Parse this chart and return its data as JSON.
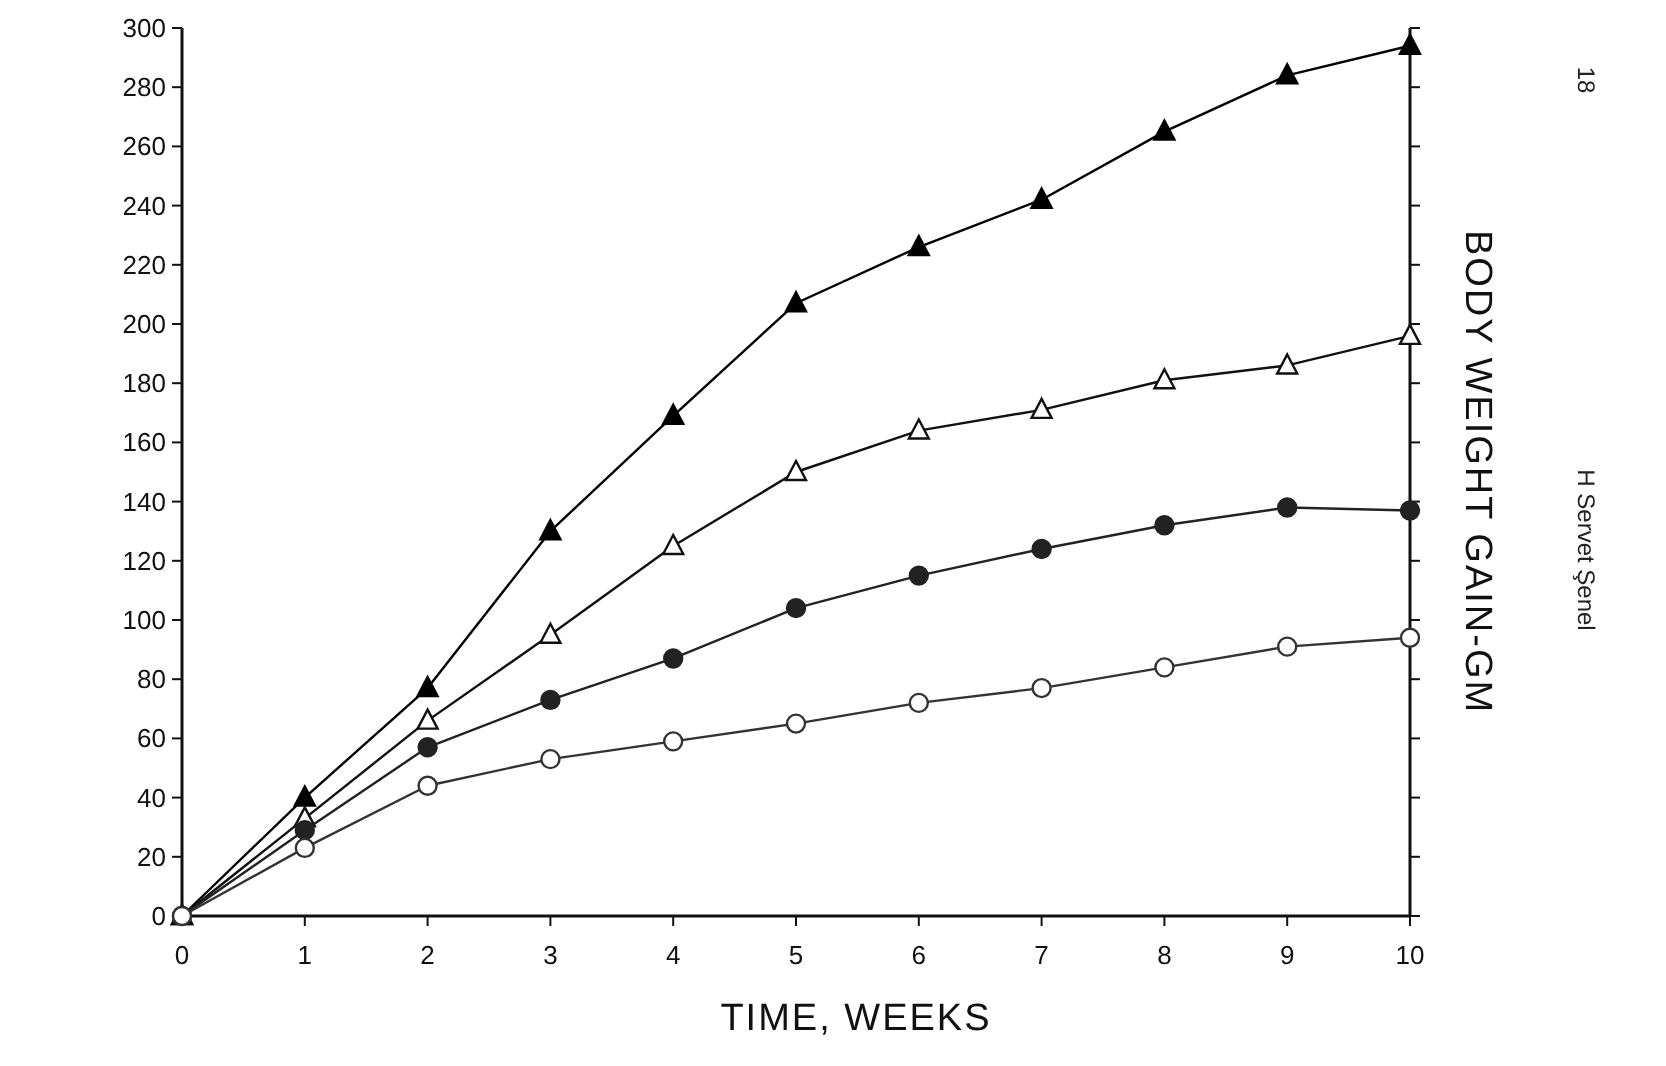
{
  "chart_data": {
    "type": "line",
    "xlabel": "TIME, WEEKS",
    "ylabel": "BODY WEIGHT GAIN-GM",
    "x": [
      0,
      1,
      2,
      3,
      4,
      5,
      6,
      7,
      8,
      9,
      10
    ],
    "series": [
      {
        "color": "#000000",
        "marker": "triangle",
        "values": [
          0,
          40,
          77,
          130,
          169,
          207,
          226,
          242,
          265,
          284,
          294
        ]
      },
      {
        "color": "#111111",
        "marker": "triangle",
        "values": [
          0,
          33,
          66,
          95,
          125,
          150,
          164,
          171,
          181,
          186,
          196
        ]
      },
      {
        "color": "#222222",
        "marker": "circle",
        "values": [
          0,
          29,
          57,
          73,
          87,
          104,
          115,
          124,
          132,
          138,
          137
        ]
      },
      {
        "color": "#333333",
        "marker": "circle",
        "values": [
          0,
          23,
          44,
          53,
          59,
          65,
          72,
          77,
          84,
          91,
          94
        ]
      }
    ],
    "xlim": [
      0,
      10
    ],
    "xticks": [
      0,
      1,
      2,
      3,
      4,
      5,
      6,
      7,
      8,
      9,
      10
    ],
    "ylim": [
      0,
      300
    ],
    "yticks": [
      0,
      20,
      40,
      60,
      80,
      100,
      120,
      140,
      160,
      180,
      200,
      220,
      240,
      260,
      280,
      300
    ],
    "grid": false,
    "line_style": "solid",
    "annotations": [
      "18",
      "H Servet Şenel"
    ]
  }
}
